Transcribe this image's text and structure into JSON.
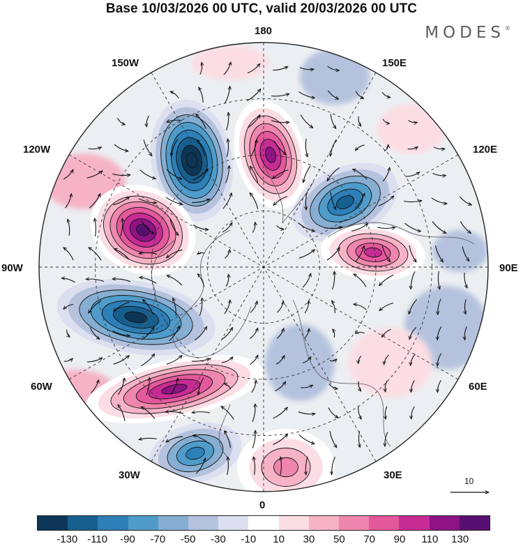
{
  "header": {
    "title": "Base 10/03/2026 00 UTC, valid 20/03/2026 00 UTC",
    "brand": "MODES",
    "brand_mark": "®"
  },
  "map": {
    "projection": "north polar stereographic",
    "longitude_labels": {
      "top": "180",
      "top_left": "150W",
      "top_right": "150E",
      "upper_left": "120W",
      "upper_right": "120E",
      "left": "90W",
      "right": "90E",
      "lower_left": "60W",
      "lower_right": "60E",
      "bottom_left": "30W",
      "bottom_right": "30E",
      "bottom": "0"
    },
    "vector_scale_label": "10",
    "anomaly_centers": [
      {
        "name": "blue-aleutian",
        "sign": "negative",
        "level": -130
      },
      {
        "name": "magenta-east-siberia",
        "sign": "positive",
        "level": 110
      },
      {
        "name": "purple-canada",
        "sign": "positive",
        "level": 130
      },
      {
        "name": "blue-north-america",
        "sign": "negative",
        "level": -110
      },
      {
        "name": "magenta-atlantic",
        "sign": "positive",
        "level": 110
      },
      {
        "name": "blue-east-asia",
        "sign": "negative",
        "level": -90
      },
      {
        "name": "magenta-central-siberia",
        "sign": "positive",
        "level": 90
      },
      {
        "name": "blue-north-atlantic",
        "sign": "negative",
        "level": -70
      },
      {
        "name": "pink-europe",
        "sign": "positive",
        "level": 50
      }
    ]
  },
  "colorbar": {
    "ticks": [
      "-130",
      "-110",
      "-90",
      "-70",
      "-50",
      "-30",
      "-10",
      "10",
      "30",
      "50",
      "70",
      "90",
      "110",
      "130"
    ],
    "colors": [
      "#0d3656",
      "#175f8e",
      "#2d7fb8",
      "#4f9ccb",
      "#86aed2",
      "#b4c2de",
      "#dcdff0",
      "#ffffff",
      "#fbdde3",
      "#f6b3c6",
      "#ee86ad",
      "#e4589c",
      "#c72c95",
      "#8e1385",
      "#580f72"
    ]
  }
}
